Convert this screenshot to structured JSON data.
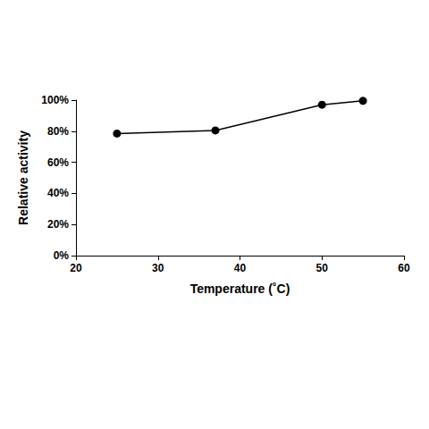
{
  "chart_data": {
    "type": "line",
    "x_label": "Temperature (˚C)",
    "y_label": "Relative activity",
    "x": [
      25,
      37,
      50,
      55
    ],
    "values": [
      78.5,
      80.5,
      97,
      99.5
    ],
    "color": "#000000",
    "marker": "circle",
    "line_style": "solid",
    "xlim": [
      20,
      60
    ],
    "xticks": [
      20,
      30,
      40,
      50,
      60
    ],
    "ylim": [
      0,
      100
    ],
    "yticks": [
      {
        "value": 0,
        "label": "0%"
      },
      {
        "value": 20,
        "label": "20%"
      },
      {
        "value": 40,
        "label": "40%"
      },
      {
        "value": 60,
        "label": "60%"
      },
      {
        "value": 80,
        "label": "80%"
      },
      {
        "value": 100,
        "label": "100%"
      }
    ],
    "grid": false
  }
}
